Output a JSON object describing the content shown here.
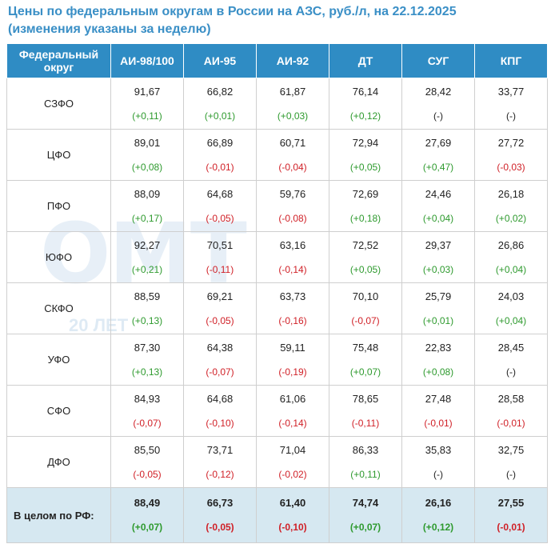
{
  "title_line1": "Цены по федеральным округам в России на АЗС, руб./л, на 22.12.2025",
  "title_line2": "(изменения указаны за неделю)",
  "watermark": {
    "letters": "ОМТ",
    "sub": "20 ЛЕТ"
  },
  "colors": {
    "header": "#2f8cc4",
    "positive": "#2e9a2e",
    "negative": "#d01f26",
    "total_row": "#d6e8f1",
    "title": "#3a8fc6"
  },
  "columns": [
    "Федеральный округ",
    "АИ-98/100",
    "АИ-95",
    "АИ-92",
    "ДТ",
    "СУГ",
    "КПГ"
  ],
  "rows": [
    {
      "region": "СЗФО",
      "cells": [
        {
          "v": "91,67",
          "c": "(+0,11)",
          "t": "pos"
        },
        {
          "v": "66,82",
          "c": "(+0,01)",
          "t": "pos"
        },
        {
          "v": "61,87",
          "c": "(+0,03)",
          "t": "pos"
        },
        {
          "v": "76,14",
          "c": "(+0,12)",
          "t": "pos"
        },
        {
          "v": "28,42",
          "c": "(-)",
          "t": "nil"
        },
        {
          "v": "33,77",
          "c": "(-)",
          "t": "nil"
        }
      ]
    },
    {
      "region": "ЦФО",
      "cells": [
        {
          "v": "89,01",
          "c": "(+0,08)",
          "t": "pos"
        },
        {
          "v": "66,89",
          "c": "(-0,01)",
          "t": "neg"
        },
        {
          "v": "60,71",
          "c": "(-0,04)",
          "t": "neg"
        },
        {
          "v": "72,94",
          "c": "(+0,05)",
          "t": "pos"
        },
        {
          "v": "27,69",
          "c": "(+0,47)",
          "t": "pos"
        },
        {
          "v": "27,72",
          "c": "(-0,03)",
          "t": "neg"
        }
      ]
    },
    {
      "region": "ПФО",
      "cells": [
        {
          "v": "88,09",
          "c": "(+0,17)",
          "t": "pos"
        },
        {
          "v": "64,68",
          "c": "(-0,05)",
          "t": "neg"
        },
        {
          "v": "59,76",
          "c": "(-0,08)",
          "t": "neg"
        },
        {
          "v": "72,69",
          "c": "(+0,18)",
          "t": "pos"
        },
        {
          "v": "24,46",
          "c": "(+0,04)",
          "t": "pos"
        },
        {
          "v": "26,18",
          "c": "(+0,02)",
          "t": "pos"
        }
      ]
    },
    {
      "region": "ЮФО",
      "cells": [
        {
          "v": "92,27",
          "c": "(+0,21)",
          "t": "pos"
        },
        {
          "v": "70,51",
          "c": "(-0,11)",
          "t": "neg"
        },
        {
          "v": "63,16",
          "c": "(-0,14)",
          "t": "neg"
        },
        {
          "v": "72,52",
          "c": "(+0,05)",
          "t": "pos"
        },
        {
          "v": "29,37",
          "c": "(+0,03)",
          "t": "pos"
        },
        {
          "v": "26,86",
          "c": "(+0,04)",
          "t": "pos"
        }
      ]
    },
    {
      "region": "СКФО",
      "cells": [
        {
          "v": "88,59",
          "c": "(+0,13)",
          "t": "pos"
        },
        {
          "v": "69,21",
          "c": "(-0,05)",
          "t": "neg"
        },
        {
          "v": "63,73",
          "c": "(-0,16)",
          "t": "neg"
        },
        {
          "v": "70,10",
          "c": "(-0,07)",
          "t": "neg"
        },
        {
          "v": "25,79",
          "c": "(+0,01)",
          "t": "pos"
        },
        {
          "v": "24,03",
          "c": "(+0,04)",
          "t": "pos"
        }
      ]
    },
    {
      "region": "УФО",
      "cells": [
        {
          "v": "87,30",
          "c": "(+0,13)",
          "t": "pos"
        },
        {
          "v": "64,38",
          "c": "(-0,07)",
          "t": "neg"
        },
        {
          "v": "59,11",
          "c": "(-0,19)",
          "t": "neg"
        },
        {
          "v": "75,48",
          "c": "(+0,07)",
          "t": "pos"
        },
        {
          "v": "22,83",
          "c": "(+0,08)",
          "t": "pos"
        },
        {
          "v": "28,45",
          "c": "(-)",
          "t": "nil"
        }
      ]
    },
    {
      "region": "СФО",
      "cells": [
        {
          "v": "84,93",
          "c": "(-0,07)",
          "t": "neg"
        },
        {
          "v": "64,68",
          "c": "(-0,10)",
          "t": "neg"
        },
        {
          "v": "61,06",
          "c": "(-0,14)",
          "t": "neg"
        },
        {
          "v": "78,65",
          "c": "(-0,11)",
          "t": "neg"
        },
        {
          "v": "27,48",
          "c": "(-0,01)",
          "t": "neg"
        },
        {
          "v": "28,58",
          "c": "(-0,01)",
          "t": "neg"
        }
      ]
    },
    {
      "region": "ДФО",
      "cells": [
        {
          "v": "85,50",
          "c": "(-0,05)",
          "t": "neg"
        },
        {
          "v": "73,71",
          "c": "(-0,12)",
          "t": "neg"
        },
        {
          "v": "71,04",
          "c": "(-0,02)",
          "t": "neg"
        },
        {
          "v": "86,33",
          "c": "(+0,11)",
          "t": "pos"
        },
        {
          "v": "35,83",
          "c": "(-)",
          "t": "nil"
        },
        {
          "v": "32,75",
          "c": "(-)",
          "t": "nil"
        }
      ]
    }
  ],
  "total": {
    "region": "В целом по РФ:",
    "cells": [
      {
        "v": "88,49",
        "c": "(+0,07)",
        "t": "pos"
      },
      {
        "v": "66,73",
        "c": "(-0,05)",
        "t": "neg"
      },
      {
        "v": "61,40",
        "c": "(-0,10)",
        "t": "neg"
      },
      {
        "v": "74,74",
        "c": "(+0,07)",
        "t": "pos"
      },
      {
        "v": "26,16",
        "c": "(+0,12)",
        "t": "pos"
      },
      {
        "v": "27,55",
        "c": "(-0,01)",
        "t": "neg"
      }
    ]
  }
}
